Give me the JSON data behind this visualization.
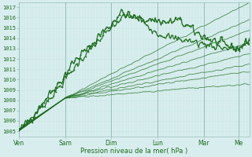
{
  "xlabel": "Pression niveau de la mer( hPa )",
  "bg_color": "#d8eeee",
  "grid_color_minor": "#c8e4e4",
  "grid_color_major": "#99bbbb",
  "line_color": "#1a6b1a",
  "ylim": [
    1004.5,
    1017.5
  ],
  "yticks": [
    1005,
    1006,
    1007,
    1008,
    1009,
    1010,
    1011,
    1012,
    1013,
    1014,
    1015,
    1016,
    1017
  ],
  "day_labels": [
    "Ven",
    "Sam",
    "Dim",
    "Lun",
    "Mar",
    "Me"
  ],
  "day_positions_norm": [
    0.0,
    0.2,
    0.4,
    0.6,
    0.8,
    0.95
  ],
  "total_steps": 240,
  "figsize": [
    3.2,
    2.0
  ],
  "dpi": 100,
  "convergence_t": 48,
  "convergence_v": 1008.2,
  "forecast_end_vals": [
    1017.5,
    1015.8,
    1014.8,
    1013.6,
    1012.5,
    1011.5,
    1010.8,
    1009.6
  ],
  "obs1_anchors_t": [
    0,
    5,
    15,
    25,
    35,
    45,
    55,
    65,
    75,
    85,
    95,
    105,
    115,
    125,
    140,
    155,
    165,
    175,
    185,
    192,
    200,
    210,
    220,
    228,
    235,
    240
  ],
  "obs1_anchors_v": [
    1005.0,
    1005.5,
    1006.5,
    1007.8,
    1009.0,
    1010.0,
    1011.5,
    1012.5,
    1013.2,
    1014.5,
    1015.2,
    1016.5,
    1016.2,
    1015.8,
    1015.8,
    1015.5,
    1015.8,
    1015.2,
    1014.5,
    1014.2,
    1013.8,
    1013.5,
    1013.2,
    1013.0,
    1013.5,
    1014.0
  ],
  "obs2_anchors_t": [
    0,
    20,
    35,
    48,
    65,
    80,
    96,
    110,
    125,
    144,
    160,
    175,
    190,
    205,
    220,
    228,
    240
  ],
  "obs2_anchors_v": [
    1005.0,
    1007.0,
    1008.5,
    1010.0,
    1012.0,
    1013.5,
    1015.0,
    1016.2,
    1016.0,
    1014.5,
    1014.0,
    1013.8,
    1013.5,
    1013.2,
    1013.0,
    1013.0,
    1013.5
  ]
}
